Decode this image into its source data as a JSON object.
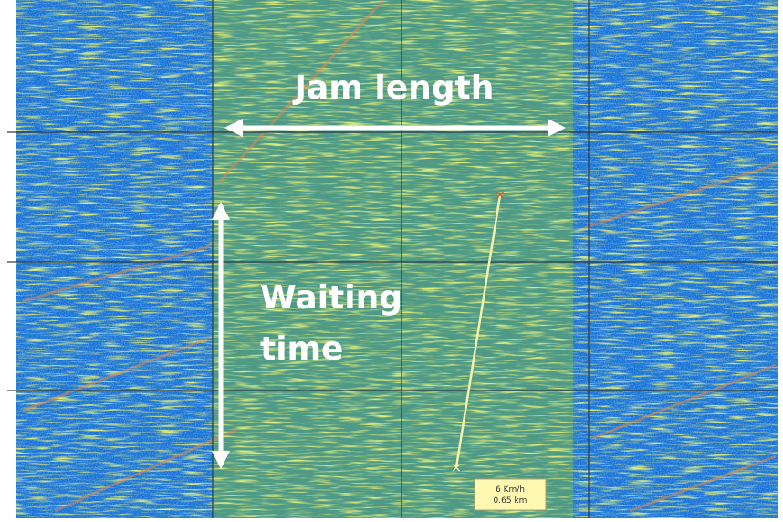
{
  "annotations": {
    "jam_length": "Jam length",
    "waiting_time": [
      "Waiting",
      "time"
    ],
    "speed_box": [
      "6 Km/h",
      "0.65 km"
    ]
  }
}
